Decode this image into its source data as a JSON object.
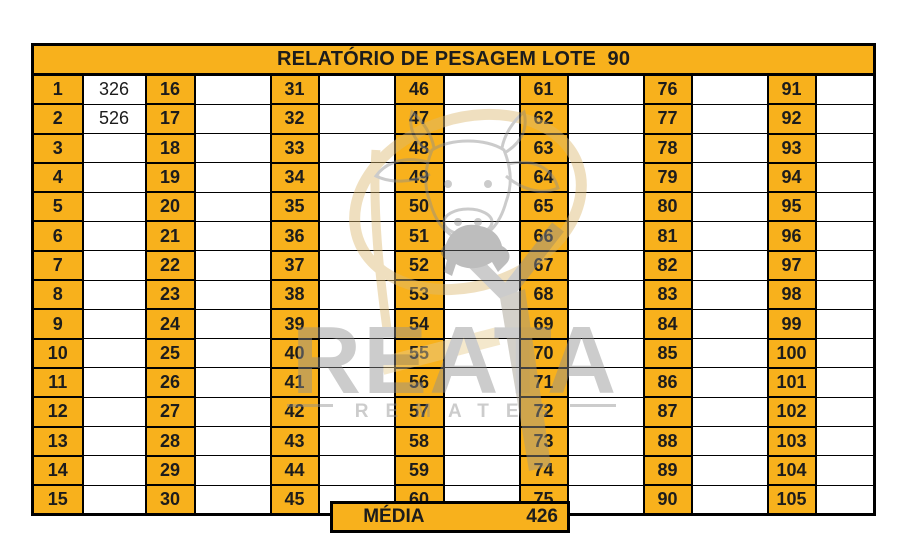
{
  "title": "RELATÓRIO DE PESAGEM LOTE  90",
  "grid": {
    "rows": 15,
    "column_starts": [
      1,
      16,
      31,
      46,
      61,
      76,
      91
    ],
    "weights": {
      "1": "326",
      "2": "526"
    }
  },
  "media": {
    "label": "MÉDIA",
    "value": "426"
  },
  "watermark": {
    "brand": "REATA",
    "subtitle": "REMATES"
  },
  "icons": {
    "watermark_logo": "bull-head-lasso-icon"
  },
  "colors": {
    "gold": "#F8B11C",
    "grid_line": "#000000",
    "cell_text": "#1C1C1C",
    "watermark_gray": "#8F8F8F",
    "watermark_cream": "#DDBA72"
  }
}
